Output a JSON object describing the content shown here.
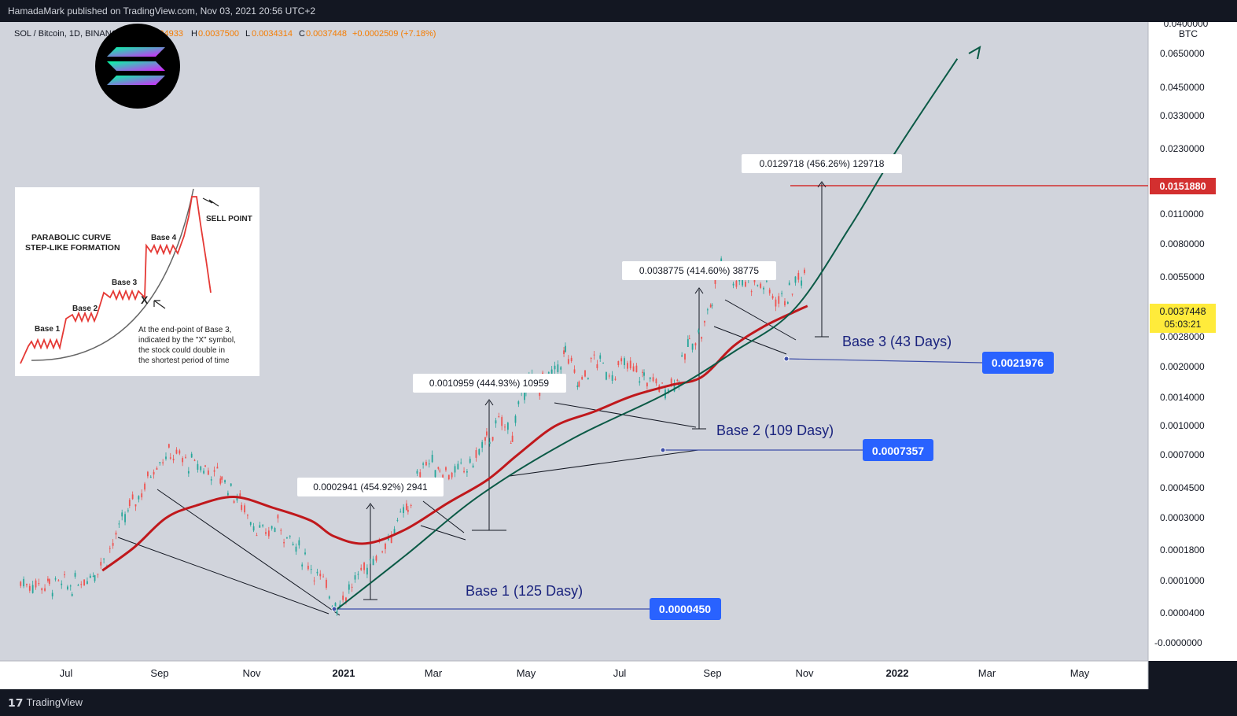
{
  "header": {
    "publish_line": "HamadaMark published on TradingView.com, Nov 03, 2021 20:56 UTC+2"
  },
  "legend": {
    "symbol": "SOL / Bitcoin, 1D, BINANCE",
    "open_label": "O",
    "open": "0.0034933",
    "high_label": "H",
    "high": "0.0037500",
    "low_label": "L",
    "low": "0.0034314",
    "close_label": "C",
    "close": "0.0037448",
    "change": "+0.0002509 (+7.18%)"
  },
  "footer": {
    "brand": "TradingView"
  },
  "colors": {
    "background": "#d1d4dc",
    "price_axis_bg": "#ffffff",
    "ma_line": "#c0181c",
    "parabola": "#0b5a46",
    "base_box": "#2962ff",
    "resistance": "#d32f2f",
    "label_text": "#1a237e",
    "candle_up": "#26a69a",
    "candle_down": "#ef5350"
  },
  "inset": {
    "title_line1": "PARABOLIC CURVE",
    "title_line2": "STEP-LIKE FORMATION",
    "base1": "Base 1",
    "base2": "Base 2",
    "base3": "Base 3",
    "base4": "Base 4",
    "sell_point": "SELL POINT",
    "x_marker": "X",
    "note_lines": [
      "At the end-point of Base 3,",
      "indicated by the \"X\" symbol,",
      "the stock could double in",
      "the shortest period of time"
    ]
  },
  "logo_icon": "solana-logo",
  "chart_data": {
    "type": "line",
    "title": "SOL / Bitcoin, 1D, BINANCE",
    "yscale": "log",
    "yunit": "BTC",
    "x_ticks": [
      "Jul",
      "Sep",
      "Nov",
      "2021",
      "Mar",
      "May",
      "Jul",
      "Sep",
      "Nov",
      "2022",
      "Mar",
      "May"
    ],
    "y_ticks": [
      "0.0650000",
      "0.0450000",
      "0.0330000",
      "0.0230000",
      "0.0110000",
      "0.0080000",
      "0.0055000",
      "0.0028000",
      "0.0020000",
      "0.0014000",
      "0.0010000",
      "0.0007000",
      "0.0004500",
      "0.0003000",
      "0.0001800",
      "0.0001000",
      "0.0000400",
      "-0.0000000"
    ],
    "y_tick_top_partial": "0.0400000",
    "price_tags": [
      {
        "name": "resistance",
        "value": "0.0151880"
      },
      {
        "name": "last",
        "value": "0.0037448",
        "countdown": "05:03:21"
      }
    ],
    "series": [
      {
        "name": "SOLBTC",
        "points": [
          [
            "2020-06-01",
            6e-05
          ],
          [
            "2020-06-20",
            5.8e-05
          ],
          [
            "2020-07-05",
            5.7e-05
          ],
          [
            "2020-07-20",
            7e-05
          ],
          [
            "2020-07-28",
            8.5e-05
          ],
          [
            "2020-08-05",
            0.00012
          ],
          [
            "2020-08-12",
            0.00016
          ],
          [
            "2020-08-20",
            0.0002
          ],
          [
            "2020-08-30",
            0.0003
          ],
          [
            "2020-09-08",
            0.00033
          ],
          [
            "2020-09-20",
            0.00029
          ],
          [
            "2020-10-01",
            0.00027
          ],
          [
            "2020-10-12",
            0.00024
          ],
          [
            "2020-10-25",
            0.00017
          ],
          [
            "2020-11-08",
            0.00011
          ],
          [
            "2020-11-18",
            0.00013
          ],
          [
            "2020-11-28",
            0.0001
          ],
          [
            "2020-12-10",
            7.5e-05
          ],
          [
            "2020-12-20",
            5.5e-05
          ],
          [
            "2020-12-27",
            4.5e-05
          ],
          [
            "2021-01-08",
            6e-05
          ],
          [
            "2021-01-20",
            8.5e-05
          ],
          [
            "2021-02-01",
            0.000115
          ],
          [
            "2021-02-12",
            0.00016
          ],
          [
            "2021-02-22",
            0.0003
          ],
          [
            "2021-03-05",
            0.00027
          ],
          [
            "2021-03-15",
            0.00025
          ],
          [
            "2021-03-25",
            0.00028
          ],
          [
            "2021-04-05",
            0.00039
          ],
          [
            "2021-04-15",
            0.0005
          ],
          [
            "2021-04-22",
            0.00042
          ],
          [
            "2021-05-01",
            0.00085
          ],
          [
            "2021-05-10",
            0.00082
          ],
          [
            "2021-05-20",
            0.00095
          ],
          [
            "2021-05-27",
            0.00125
          ],
          [
            "2021-06-05",
            0.0008
          ],
          [
            "2021-06-15",
            0.00115
          ],
          [
            "2021-06-25",
            0.00095
          ],
          [
            "2021-07-05",
            0.00105
          ],
          [
            "2021-07-18",
            0.0009
          ],
          [
            "2021-07-30",
            0.00078
          ],
          [
            "2021-08-10",
            0.0009
          ],
          [
            "2021-08-17",
            0.00145
          ],
          [
            "2021-08-25",
            0.0016
          ],
          [
            "2021-09-01",
            0.0025
          ],
          [
            "2021-09-07",
            0.0043
          ],
          [
            "2021-09-15",
            0.0033
          ],
          [
            "2021-09-25",
            0.0032
          ],
          [
            "2021-10-05",
            0.003
          ],
          [
            "2021-10-15",
            0.0025
          ],
          [
            "2021-10-22",
            0.0027
          ],
          [
            "2021-10-28",
            0.0033
          ],
          [
            "2021-11-03",
            0.0037448
          ]
        ]
      },
      {
        "name": "MA",
        "points": [
          [
            "2020-07-25",
            7e-05
          ],
          [
            "2020-08-15",
            9.5e-05
          ],
          [
            "2020-09-05",
            0.00014
          ],
          [
            "2020-09-25",
            0.000165
          ],
          [
            "2020-10-20",
            0.000185
          ],
          [
            "2020-11-15",
            0.00016
          ],
          [
            "2020-12-10",
            0.000135
          ],
          [
            "2020-12-25",
            0.00011
          ],
          [
            "2021-01-15",
            0.0001
          ],
          [
            "2021-02-10",
            0.00012
          ],
          [
            "2021-03-10",
            0.00017
          ],
          [
            "2021-04-05",
            0.00023
          ],
          [
            "2021-04-25",
            0.00032
          ],
          [
            "2021-05-20",
            0.00047
          ],
          [
            "2021-06-15",
            0.00057
          ],
          [
            "2021-07-10",
            0.0007
          ],
          [
            "2021-08-05",
            0.00081
          ],
          [
            "2021-08-25",
            0.0009
          ],
          [
            "2021-09-15",
            0.00135
          ],
          [
            "2021-10-05",
            0.00175
          ],
          [
            "2021-10-25",
            0.00212
          ],
          [
            "2021-11-03",
            0.0023
          ]
        ]
      },
      {
        "name": "Parabola",
        "points": [
          [
            "2020-12-27",
            4.2e-05
          ],
          [
            "2021-02-10",
            8.5e-05
          ],
          [
            "2021-04-01",
            0.00019
          ],
          [
            "2021-06-01",
            0.0004
          ],
          [
            "2021-08-01",
            0.00072
          ],
          [
            "2021-09-15",
            0.00125
          ],
          [
            "2021-10-25",
            0.00219
          ],
          [
            "2021-12-01",
            0.0065
          ],
          [
            "2022-01-01",
            0.018
          ],
          [
            "2022-02-10",
            0.06
          ]
        ]
      }
    ],
    "bases": [
      {
        "label": "Base 1 (125 Dasy)",
        "price": "0.0000450"
      },
      {
        "label": "Base 2 (109 Dasy)",
        "price": "0.0007357"
      },
      {
        "label": "Base 3 (43 Days)",
        "price": "0.0021976"
      }
    ],
    "measurements": [
      {
        "label": "0.0002941 (454.92%) 2941"
      },
      {
        "label": "0.0010959 (444.93%) 10959"
      },
      {
        "label": "0.0038775 (414.60%) 38775"
      },
      {
        "label": "0.0129718 (456.26%) 129718"
      }
    ]
  }
}
